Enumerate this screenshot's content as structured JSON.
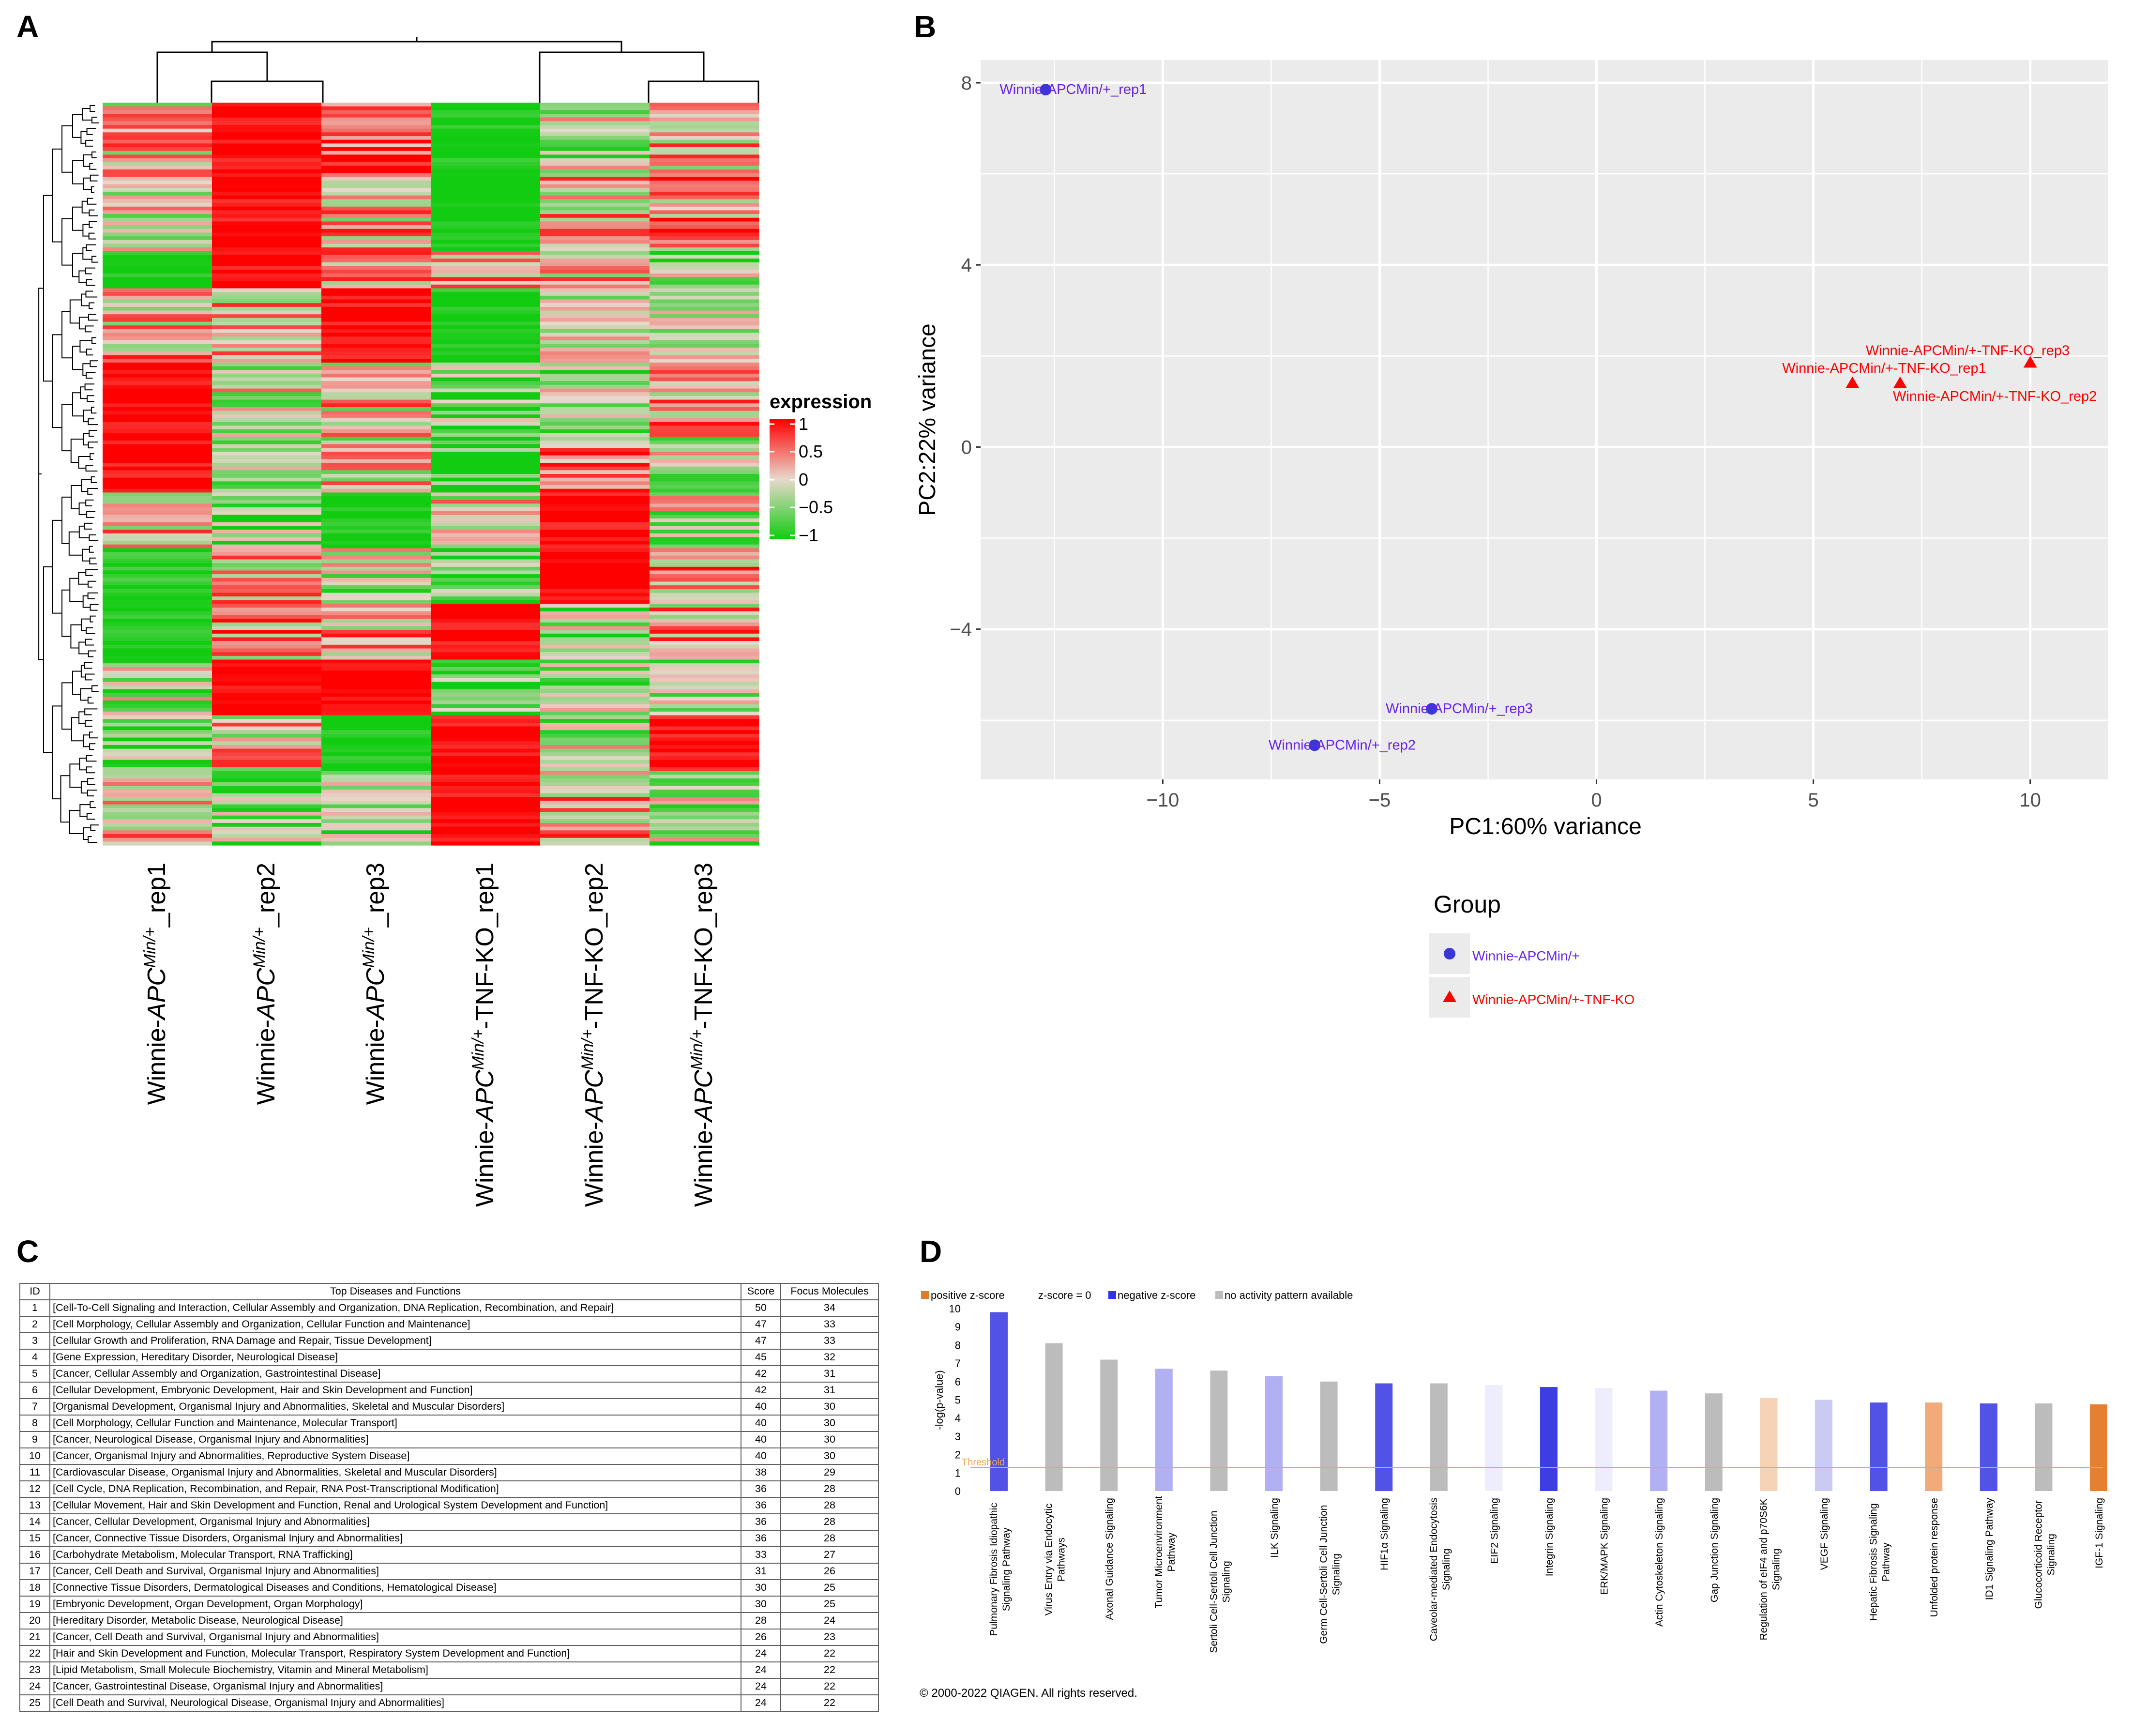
{
  "panels": {
    "a": "A",
    "b": "B",
    "c": "C",
    "d": "D"
  },
  "heatmap": {
    "columns": [
      {
        "prefix": "Winnie-",
        "gene": "APC",
        "sup": "Min/+",
        "suffix": "_rep1"
      },
      {
        "prefix": "Winnie-",
        "gene": "APC",
        "sup": "Min/+",
        "suffix": "_rep2"
      },
      {
        "prefix": "Winnie-",
        "gene": "APC",
        "sup": "Min/+",
        "suffix": "_rep3"
      },
      {
        "prefix": "Winnie-",
        "gene": "APC",
        "sup": "Min/+",
        "suffix": "-TNF-KO_rep1"
      },
      {
        "prefix": "Winnie-",
        "gene": "APC",
        "sup": "Min/+",
        "suffix": "-TNF-KO_rep2"
      },
      {
        "prefix": "Winnie-",
        "gene": "APC",
        "sup": "Min/+",
        "suffix": "-TNF-KO_rep3"
      }
    ],
    "legend_title": "expression",
    "legend_ticks": [
      "1",
      "0.5",
      "0",
      "−0.5",
      "−1"
    ],
    "colors": {
      "high": "#ff0000",
      "mid": "#e8d8cc",
      "low": "#11cc11"
    }
  },
  "chart_data": [
    {
      "type": "heatmap",
      "title": "",
      "legend_title": "expression",
      "scale_range": [
        -1,
        1
      ],
      "columns": [
        "Winnie-APCMin/+_rep1",
        "Winnie-APCMin/+_rep2",
        "Winnie-APCMin/+_rep3",
        "Winnie-APCMin/+-TNF-KO_rep1",
        "Winnie-APCMin/+-TNF-KO_rep2",
        "Winnie-APCMin/+-TNF-KO_rep3"
      ],
      "dendrogram_clusters": [
        [
          "Winnie-APCMin/+_rep1",
          [
            "Winnie-APCMin/+_rep2",
            "Winnie-APCMin/+_rep3"
          ]
        ],
        [
          "Winnie-APCMin/+-TNF-KO_rep1",
          [
            "Winnie-APCMin/+-TNF-KO_rep2",
            "Winnie-APCMin/+-TNF-KO_rep3"
          ]
        ]
      ],
      "row_blocks": [
        {
          "rows": 20,
          "values": [
            0.1,
            1,
            0.6,
            -1,
            -0.2,
            0.2
          ]
        },
        {
          "rows": 20,
          "values": [
            -0.2,
            1,
            0.2,
            -1,
            0.1,
            0.4
          ]
        },
        {
          "rows": 10,
          "values": [
            -1,
            1,
            0.2,
            0.3,
            0.1,
            -0.4
          ]
        },
        {
          "rows": 20,
          "values": [
            0.2,
            0.2,
            1,
            -1,
            -0.2,
            -0.3
          ]
        },
        {
          "rows": 20,
          "values": [
            1,
            -0.1,
            0.1,
            -0.6,
            -0.4,
            0.2
          ]
        },
        {
          "rows": 15,
          "values": [
            1,
            -0.4,
            0,
            -0.8,
            0.3,
            -0.2
          ]
        },
        {
          "rows": 15,
          "values": [
            0.1,
            -0.4,
            -1,
            0,
            1,
            -0.2
          ]
        },
        {
          "rows": 15,
          "values": [
            -0.9,
            0.1,
            -0.2,
            -0.4,
            1,
            0.3
          ]
        },
        {
          "rows": 15,
          "values": [
            -1,
            0.3,
            0.2,
            1,
            -0.3,
            0.2
          ]
        },
        {
          "rows": 15,
          "values": [
            -0.3,
            1,
            1,
            -0.6,
            -0.4,
            -0.3
          ]
        },
        {
          "rows": 15,
          "values": [
            -0.6,
            0.1,
            -1,
            1,
            -0.2,
            1
          ]
        },
        {
          "rows": 20,
          "values": [
            0.1,
            -0.5,
            -0.4,
            1,
            0.2,
            -0.3
          ]
        }
      ]
    },
    {
      "type": "scatter",
      "title": "",
      "xlabel": "PC1:60% variance",
      "ylabel": "PC2:22% variance",
      "xlim": [
        -14.2,
        11.8
      ],
      "ylim": [
        -7.3,
        8.5
      ],
      "xticks": [
        -10,
        -5,
        0,
        5,
        10
      ],
      "yticks": [
        -4,
        0,
        4,
        8
      ],
      "grid": true,
      "legend_title": "Group",
      "series": [
        {
          "name": "Winnie-APCMin/+",
          "color": "#3b37d6",
          "label_color": "#6622ee",
          "shape": "circle",
          "points": [
            {
              "x": -12.7,
              "y": 7.85,
              "label": "Winnie-APCMin/+_rep1"
            },
            {
              "x": -6.5,
              "y": -6.55,
              "label": "Winnie-APCMin/+_rep2"
            },
            {
              "x": -3.8,
              "y": -5.75,
              "label": "Winnie-APCMin/+_rep3"
            }
          ]
        },
        {
          "name": "Winnie-APCMin/+-TNF-KO",
          "color": "#ff0000",
          "label_color": "#ff0000",
          "shape": "triangle",
          "points": [
            {
              "x": 5.9,
              "y": 1.4,
              "label": "Winnie-APCMin/+-TNF-KO_rep1"
            },
            {
              "x": 7.0,
              "y": 1.4,
              "label": "Winnie-APCMin/+-TNF-KO_rep2"
            },
            {
              "x": 10.0,
              "y": 1.85,
              "label": "Winnie-APCMin/+-TNF-KO_rep3"
            }
          ]
        }
      ]
    },
    {
      "type": "bar",
      "title": "",
      "ylabel": "-log(p-value)",
      "ylim": [
        0,
        10
      ],
      "yticks": [
        0,
        1,
        2,
        3,
        4,
        5,
        6,
        7,
        8,
        9,
        10
      ],
      "threshold": 1.3,
      "threshold_label": "Threshold",
      "legend": [
        {
          "label": "positive z-score",
          "color": "#e07a2c"
        },
        {
          "label": "z-score = 0",
          "color": ""
        },
        {
          "label": "negative z-score",
          "color": "#3030ee"
        },
        {
          "label": "no activity pattern available",
          "color": "#bcbcbc"
        }
      ],
      "categories": [
        [
          "Pulmonary Fibrosis Idiopathic",
          "Signaling Pathway"
        ],
        [
          "Virus Entry via Endocytic",
          "Pathways"
        ],
        [
          "Axonal Guidance Signaling"
        ],
        [
          "Tumor Microenvironment",
          "Pathway"
        ],
        [
          "Sertoli Cell-Sertoli Cell Junction",
          "Signaling"
        ],
        [
          "ILK Signaling"
        ],
        [
          "Germ Cell-Sertoli Cell Junction",
          "Signaling"
        ],
        [
          "HIF1α Signaling"
        ],
        [
          "Caveolar-mediated Endocytosis",
          "Signaling"
        ],
        [
          "EIF2 Signaling"
        ],
        [
          "Integrin Signaling"
        ],
        [
          "ERK/MAPK Signaling"
        ],
        [
          "Actin Cytoskeleton Signaling"
        ],
        [
          "Gap Junction Signaling"
        ],
        [
          "Regulation of eIF4 and p70S6K",
          "Signaling"
        ],
        [
          "VEGF Signaling"
        ],
        [
          "Hepatic Fibrosis Signaling",
          "Pathway"
        ],
        [
          "Unfolded protein response"
        ],
        [
          "ID1 Signaling Pathway"
        ],
        [
          "Glucocorticoid Receptor",
          "Signaling"
        ],
        [
          "IGF-1 Signaling"
        ]
      ],
      "values": [
        9.8,
        8.1,
        7.2,
        6.7,
        6.6,
        6.3,
        6.0,
        5.9,
        5.9,
        5.8,
        5.7,
        5.65,
        5.5,
        5.35,
        5.1,
        5.0,
        4.85,
        4.85,
        4.8,
        4.8,
        4.75
      ],
      "bar_colors": [
        "#5252e6",
        "#bcbcbc",
        "#bcbcbc",
        "#b0b0f2",
        "#bcbcbc",
        "#b0b0f2",
        "#bcbcbc",
        "#5252e6",
        "#bcbcbc",
        "#ededfb",
        "#3d3de2",
        "#ededfb",
        "#b0b0f2",
        "#bcbcbc",
        "#f6d2b6",
        "#cacaf5",
        "#5252e6",
        "#f1aa7a",
        "#5252e6",
        "#bcbcbc",
        "#e58033"
      ]
    }
  ],
  "table": {
    "headers": [
      "ID",
      "Top Diseases and Functions",
      "Score",
      "Focus Molecules"
    ],
    "rows": [
      [
        "1",
        "[Cell-To-Cell Signaling and Interaction, Cellular Assembly and Organization, DNA Replication, Recombination, and Repair]",
        "50",
        "34"
      ],
      [
        "2",
        "[Cell Morphology, Cellular Assembly and Organization, Cellular Function and Maintenance]",
        "47",
        "33"
      ],
      [
        "3",
        "[Cellular Growth and Proliferation, RNA Damage and Repair, Tissue Development]",
        "47",
        "33"
      ],
      [
        "4",
        "[Gene Expression, Hereditary Disorder, Neurological Disease]",
        "45",
        "32"
      ],
      [
        "5",
        "[Cancer, Cellular Assembly and Organization, Gastrointestinal Disease]",
        "42",
        "31"
      ],
      [
        "6",
        "[Cellular Development, Embryonic Development, Hair and Skin Development and Function]",
        "42",
        "31"
      ],
      [
        "7",
        "[Organismal Development, Organismal Injury and Abnormalities, Skeletal and Muscular Disorders]",
        "40",
        "30"
      ],
      [
        "8",
        "[Cell Morphology, Cellular Function and Maintenance, Molecular Transport]",
        "40",
        "30"
      ],
      [
        "9",
        "[Cancer, Neurological Disease, Organismal Injury and Abnormalities]",
        "40",
        "30"
      ],
      [
        "10",
        "[Cancer, Organismal Injury and Abnormalities, Reproductive System Disease]",
        "40",
        "30"
      ],
      [
        "11",
        "[Cardiovascular Disease, Organismal Injury and Abnormalities, Skeletal and Muscular Disorders]",
        "38",
        "29"
      ],
      [
        "12",
        "[Cell Cycle, DNA Replication, Recombination, and Repair, RNA Post-Transcriptional Modification]",
        "36",
        "28"
      ],
      [
        "13",
        "[Cellular Movement, Hair and Skin Development and Function, Renal and Urological System Development and Function]",
        "36",
        "28"
      ],
      [
        "14",
        "[Cancer, Cellular Development, Organismal Injury and Abnormalities]",
        "36",
        "28"
      ],
      [
        "15",
        "[Cancer, Connective Tissue Disorders, Organismal Injury and Abnormalities]",
        "36",
        "28"
      ],
      [
        "16",
        "[Carbohydrate Metabolism, Molecular Transport, RNA Trafficking]",
        "33",
        "27"
      ],
      [
        "17",
        "[Cancer, Cell Death and Survival, Organismal Injury and Abnormalities]",
        "31",
        "26"
      ],
      [
        "18",
        "[Connective Tissue Disorders, Dermatological Diseases and Conditions, Hematological Disease]",
        "30",
        "25"
      ],
      [
        "19",
        "[Embryonic Development, Organ Development, Organ Morphology]",
        "30",
        "25"
      ],
      [
        "20",
        "[Hereditary Disorder, Metabolic Disease, Neurological Disease]",
        "28",
        "24"
      ],
      [
        "21",
        "[Cancer, Cell Death and Survival, Organismal Injury and Abnormalities]",
        "26",
        "23"
      ],
      [
        "22",
        "[Hair and Skin Development and Function, Molecular Transport, Respiratory System Development and Function]",
        "24",
        "22"
      ],
      [
        "23",
        "[Lipid Metabolism, Small Molecule Biochemistry, Vitamin and Mineral Metabolism]",
        "24",
        "22"
      ],
      [
        "24",
        "[Cancer, Gastrointestinal Disease, Organismal Injury and Abnormalities]",
        "24",
        "22"
      ],
      [
        "25",
        "[Cell Death and Survival, Neurological Disease, Organismal Injury and Abnormalities]",
        "24",
        "22"
      ]
    ]
  },
  "copyright": "© 2000-2022 QIAGEN. All rights reserved."
}
